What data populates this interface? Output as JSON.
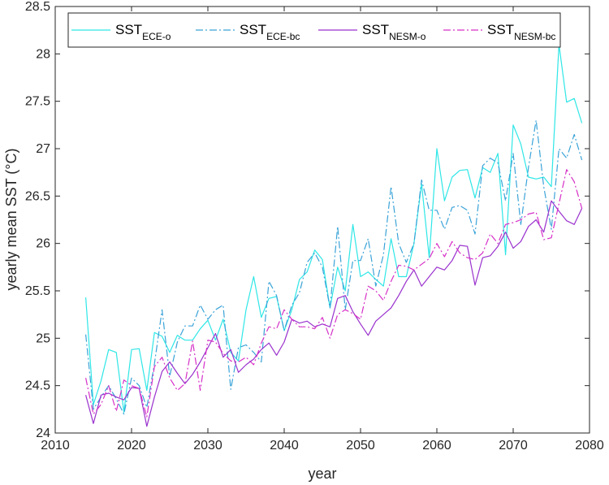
{
  "chart_data": {
    "type": "line",
    "title": "",
    "xlabel": "year",
    "ylabel": "yearly mean SST (°C)",
    "xlim": [
      2010,
      2080
    ],
    "ylim": [
      24,
      28.5
    ],
    "x_ticks": [
      "2010",
      "2020",
      "2030",
      "2040",
      "2050",
      "2060",
      "2070",
      "2080"
    ],
    "y_ticks": [
      "24",
      "24.5",
      "25",
      "25.5",
      "26",
      "26.5",
      "27",
      "27.5",
      "28",
      "28.5"
    ],
    "grid": false,
    "legend_position": "top",
    "x": [
      2014,
      2015,
      2016,
      2017,
      2018,
      2019,
      2020,
      2021,
      2022,
      2023,
      2024,
      2025,
      2026,
      2027,
      2028,
      2029,
      2030,
      2031,
      2032,
      2033,
      2034,
      2035,
      2036,
      2037,
      2038,
      2039,
      2040,
      2041,
      2042,
      2043,
      2044,
      2045,
      2046,
      2047,
      2048,
      2049,
      2050,
      2051,
      2052,
      2053,
      2054,
      2055,
      2056,
      2057,
      2058,
      2059,
      2060,
      2061,
      2062,
      2063,
      2064,
      2065,
      2066,
      2067,
      2068,
      2069,
      2070,
      2071,
      2072,
      2073,
      2074,
      2075,
      2076,
      2077,
      2078,
      2079
    ],
    "series": [
      {
        "name_main": "SST",
        "name_sub": "ECE-o",
        "color": "#2ee6e6",
        "dash": "solid",
        "values": [
          25.43,
          24.3,
          24.55,
          24.88,
          24.85,
          24.22,
          24.88,
          24.89,
          24.45,
          25.06,
          25.02,
          24.85,
          25.03,
          24.98,
          24.98,
          25.1,
          25.19,
          24.98,
          25.2,
          24.85,
          24.76,
          25.3,
          25.65,
          25.22,
          25.42,
          25.44,
          25.08,
          25.3,
          25.62,
          25.7,
          25.93,
          25.83,
          25.32,
          25.75,
          25.5,
          26.2,
          25.65,
          25.7,
          25.62,
          25.55,
          26.05,
          25.65,
          25.65,
          26.0,
          26.63,
          25.85,
          27.0,
          26.45,
          26.7,
          26.77,
          26.78,
          26.48,
          26.8,
          26.75,
          26.95,
          25.88,
          27.25,
          27.05,
          26.7,
          26.68,
          26.7,
          26.6,
          28.1,
          27.49,
          27.53,
          27.27
        ]
      },
      {
        "name_main": "SST",
        "name_sub": "ECE-bc",
        "color": "#3aa3d8",
        "dash": "dashdot",
        "values": [
          25.04,
          24.25,
          24.38,
          24.5,
          24.36,
          24.2,
          24.58,
          24.5,
          24.27,
          24.73,
          25.3,
          24.6,
          24.96,
          25.13,
          25.13,
          25.35,
          25.2,
          25.3,
          25.35,
          24.46,
          24.9,
          24.93,
          24.85,
          24.75,
          25.6,
          25.45,
          25.08,
          25.35,
          25.48,
          25.8,
          25.9,
          25.75,
          25.32,
          26.18,
          25.3,
          25.82,
          25.82,
          26.05,
          25.55,
          25.88,
          26.6,
          26.0,
          25.8,
          26.0,
          26.67,
          26.35,
          26.35,
          26.15,
          26.38,
          26.4,
          26.35,
          26.1,
          26.82,
          26.9,
          26.85,
          26.45,
          26.95,
          26.2,
          26.8,
          27.3,
          26.6,
          26.15,
          27.0,
          26.9,
          27.15,
          26.88
        ]
      },
      {
        "name_main": "SST",
        "name_sub": "NESM-o",
        "color": "#9a32cd",
        "dash": "solid",
        "values": [
          24.4,
          24.1,
          24.4,
          24.42,
          24.38,
          24.35,
          24.48,
          24.47,
          24.07,
          24.38,
          24.65,
          24.75,
          24.63,
          24.52,
          24.62,
          24.75,
          24.9,
          25.05,
          24.8,
          24.88,
          24.64,
          24.72,
          24.78,
          24.88,
          24.95,
          24.82,
          24.96,
          25.2,
          25.16,
          25.18,
          25.12,
          25.15,
          25.12,
          25.42,
          25.45,
          25.28,
          25.15,
          25.03,
          25.18,
          25.25,
          25.32,
          25.45,
          25.6,
          25.72,
          25.55,
          25.65,
          25.75,
          25.72,
          25.82,
          25.98,
          25.97,
          25.56,
          25.85,
          25.87,
          25.97,
          26.12,
          25.95,
          26.02,
          26.18,
          26.25,
          26.12,
          26.45,
          26.34,
          26.24,
          26.2,
          26.37
        ]
      },
      {
        "name_main": "SST",
        "name_sub": "NESM-bc",
        "color": "#d630c8",
        "dash": "dashdot",
        "values": [
          24.58,
          24.2,
          24.3,
          24.5,
          24.23,
          24.56,
          24.5,
          24.47,
          24.17,
          24.7,
          24.8,
          24.58,
          24.45,
          24.52,
          24.97,
          24.45,
          24.98,
          24.96,
          24.84,
          24.76,
          24.75,
          24.8,
          24.72,
          24.95,
          25.12,
          25.1,
          25.3,
          25.2,
          25.12,
          25.12,
          25.1,
          25.22,
          25.0,
          25.25,
          25.3,
          25.26,
          25.2,
          25.55,
          25.5,
          25.4,
          25.6,
          25.77,
          25.76,
          25.72,
          25.78,
          25.84,
          26.0,
          25.86,
          26.02,
          25.9,
          25.85,
          25.83,
          25.9,
          26.1,
          26.0,
          26.2,
          26.22,
          26.25,
          26.31,
          26.33,
          26.04,
          26.06,
          26.42,
          26.78,
          26.65,
          26.37
        ]
      }
    ]
  }
}
